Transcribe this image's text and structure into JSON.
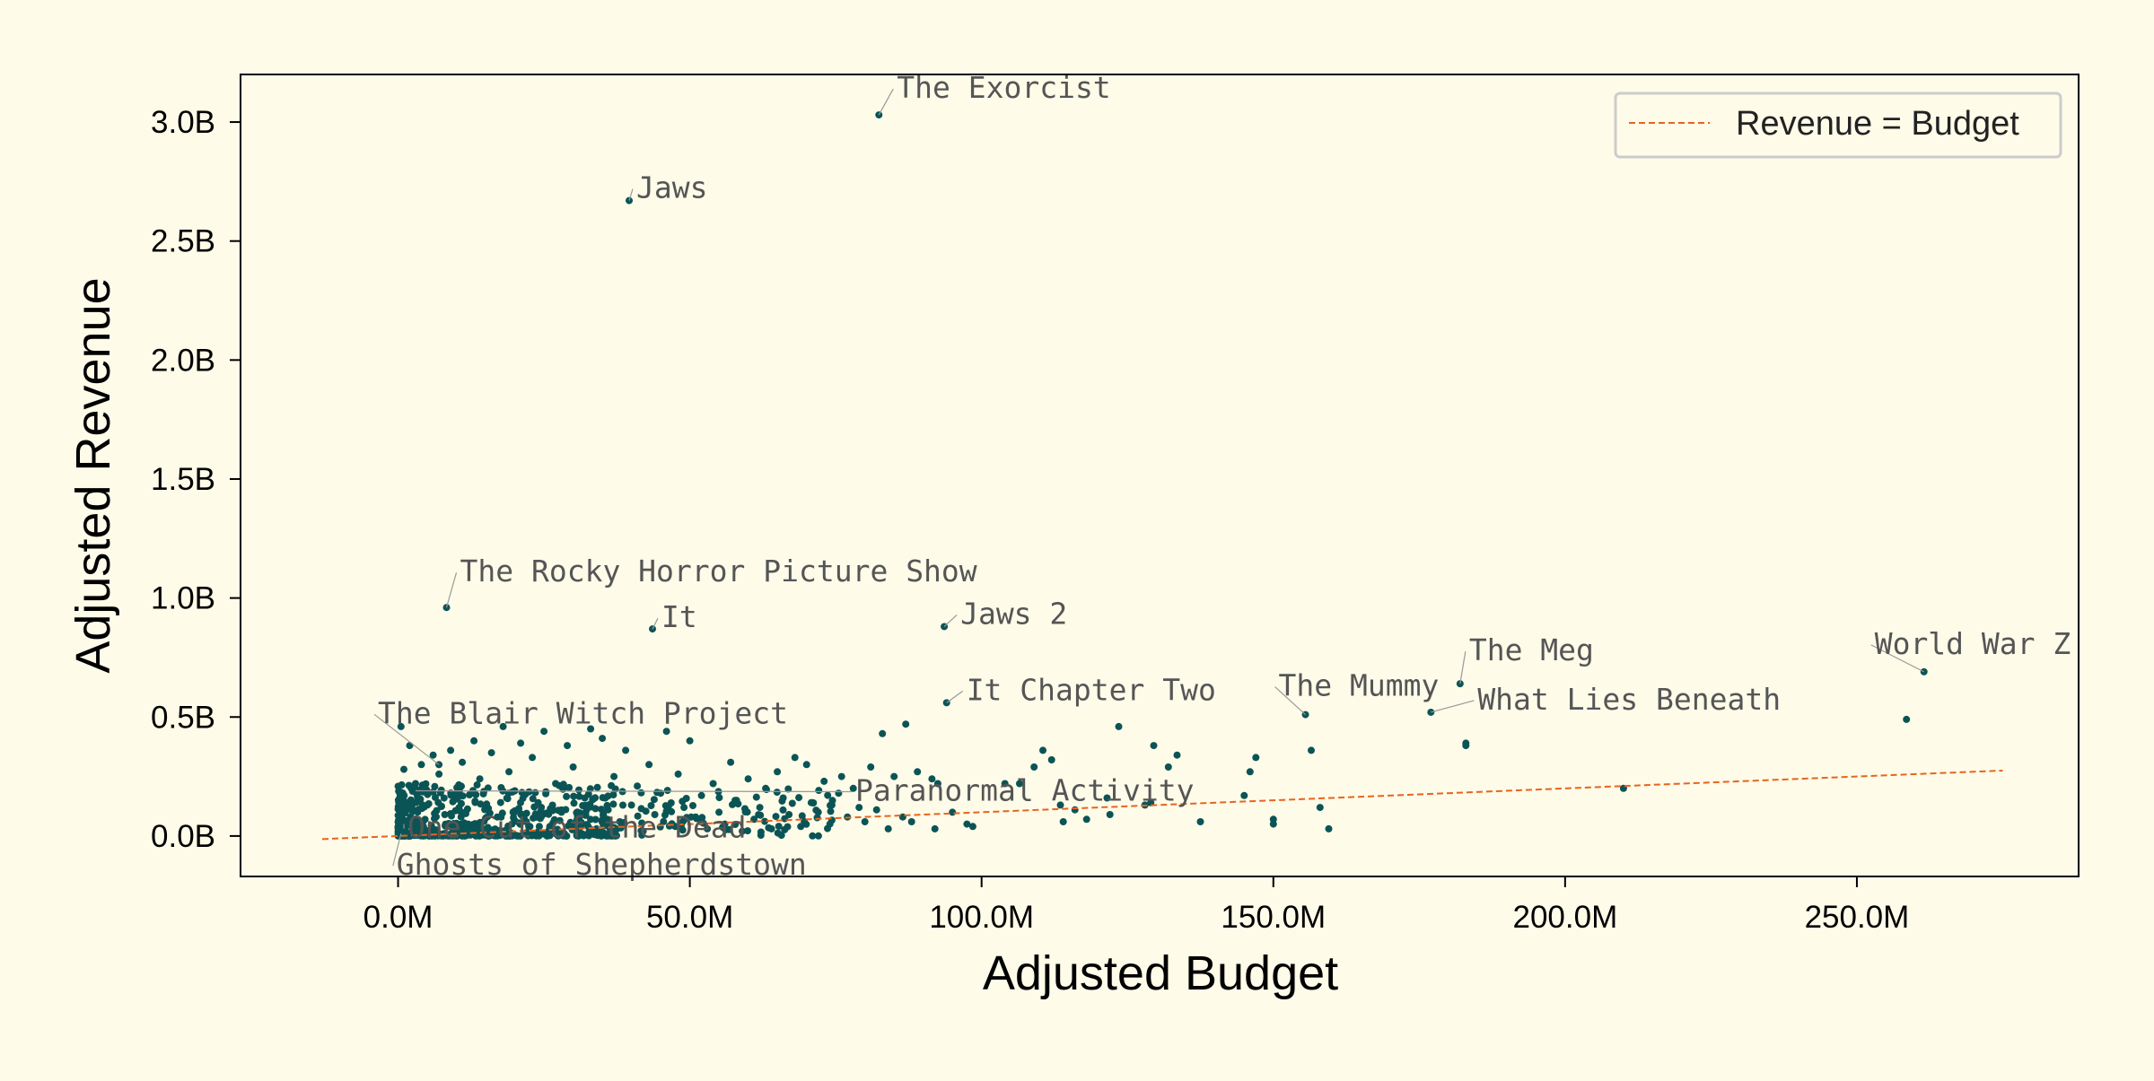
{
  "chart_data": {
    "type": "scatter",
    "xlabel": "Adjusted Budget",
    "ylabel": "Adjusted Revenue",
    "xlim": [
      -27,
      288
    ],
    "ylim": [
      -0.17,
      3.2
    ],
    "x_unit": "M",
    "y_unit": "B",
    "xticks": [
      0,
      50,
      100,
      150,
      200,
      250
    ],
    "xtick_labels": [
      "0.0M",
      "50.0M",
      "100.0M",
      "150.0M",
      "200.0M",
      "250.0M"
    ],
    "yticks": [
      0,
      0.5,
      1.0,
      1.5,
      2.0,
      2.5,
      3.0
    ],
    "ytick_labels": [
      "0.0B",
      "0.5B",
      "1.0B",
      "1.5B",
      "2.0B",
      "2.5B",
      "3.0B"
    ],
    "grid": false,
    "legend_position": "top-right",
    "reference_line": {
      "name": "Revenue = Budget",
      "x": [
        -13,
        275
      ],
      "y": [
        -0.013,
        0.275
      ],
      "color": "#e8641e"
    },
    "point_color": "#0b5456",
    "labeled_points": [
      {
        "label": "The Exorcist",
        "x": 82.4,
        "y": 3.03
      },
      {
        "label": "Jaws",
        "x": 39.6,
        "y": 2.67
      },
      {
        "label": "The Rocky Horror Picture Show",
        "x": 8.3,
        "y": 0.96
      },
      {
        "label": "It",
        "x": 43.6,
        "y": 0.87
      },
      {
        "label": "Jaws 2",
        "x": 93.6,
        "y": 0.88
      },
      {
        "label": "It Chapter Two",
        "x": 94.0,
        "y": 0.56
      },
      {
        "label": "The Mummy",
        "x": 155.5,
        "y": 0.51
      },
      {
        "label": "The Meg",
        "x": 182.0,
        "y": 0.64
      },
      {
        "label": "What Lies Beneath",
        "x": 177.0,
        "y": 0.52
      },
      {
        "label": "World War Z",
        "x": 261.5,
        "y": 0.69
      },
      {
        "label": "The Blair Witch Project",
        "x": 7.0,
        "y": 0.3
      },
      {
        "label": "Paranormal Activity",
        "x": 3.0,
        "y": 0.19
      },
      {
        "label": "One Cut of the Dead",
        "x": 1.0,
        "y": 0.05
      },
      {
        "label": "Ghosts of Shepherdstown",
        "x": 0.5,
        "y": 0.01
      }
    ],
    "other_points": [
      [
        258.5,
        0.49
      ],
      [
        210.0,
        0.2
      ],
      [
        183.0,
        0.38
      ],
      [
        183.0,
        0.39
      ],
      [
        159.5,
        0.03
      ],
      [
        158.0,
        0.12
      ],
      [
        156.5,
        0.36
      ],
      [
        150.0,
        0.05
      ],
      [
        150.0,
        0.07
      ],
      [
        147.0,
        0.33
      ],
      [
        146.0,
        0.27
      ],
      [
        145.0,
        0.17
      ],
      [
        137.5,
        0.06
      ],
      [
        133.5,
        0.34
      ],
      [
        132.0,
        0.29
      ],
      [
        129.5,
        0.38
      ],
      [
        129.0,
        0.14
      ],
      [
        128.0,
        0.13
      ],
      [
        123.5,
        0.46
      ],
      [
        122.0,
        0.09
      ],
      [
        121.5,
        0.16
      ],
      [
        118.0,
        0.07
      ],
      [
        116.0,
        0.11
      ],
      [
        114.0,
        0.06
      ],
      [
        113.5,
        0.13
      ],
      [
        112.0,
        0.32
      ],
      [
        110.5,
        0.36
      ],
      [
        109.0,
        0.29
      ],
      [
        106.5,
        0.22
      ],
      [
        104.0,
        0.22
      ],
      [
        98.5,
        0.04
      ],
      [
        97.5,
        0.05
      ],
      [
        95.0,
        0.1
      ],
      [
        92.5,
        0.22
      ],
      [
        92.0,
        0.03
      ],
      [
        91.5,
        0.24
      ],
      [
        89.0,
        0.27
      ],
      [
        88.0,
        0.06
      ],
      [
        87.0,
        0.47
      ],
      [
        86.5,
        0.08
      ],
      [
        85.0,
        0.25
      ],
      [
        84.0,
        0.03
      ],
      [
        83.0,
        0.43
      ],
      [
        82.0,
        0.11
      ],
      [
        81.0,
        0.29
      ],
      [
        80.0,
        0.06
      ],
      [
        79.0,
        0.12
      ],
      [
        78.0,
        0.2
      ],
      [
        77.0,
        0.08
      ],
      [
        76.0,
        0.25
      ],
      [
        75.5,
        0.18
      ],
      [
        74.0,
        0.05
      ],
      [
        73.0,
        0.23
      ],
      [
        72.0,
        0.1
      ],
      [
        71.0,
        0.14
      ],
      [
        70.0,
        0.3
      ],
      [
        69.0,
        0.04
      ],
      [
        68.0,
        0.33
      ],
      [
        67.0,
        0.09
      ],
      [
        66.0,
        0.16
      ],
      [
        65.0,
        0.27
      ],
      [
        64.0,
        0.03
      ],
      [
        63.0,
        0.2
      ],
      [
        62.0,
        0.12
      ],
      [
        61.0,
        0.07
      ],
      [
        60.0,
        0.24
      ],
      [
        59.0,
        0.02
      ],
      [
        58.0,
        0.15
      ],
      [
        57.0,
        0.31
      ],
      [
        56.0,
        0.05
      ],
      [
        55.0,
        0.1
      ],
      [
        54.0,
        0.22
      ],
      [
        53.0,
        0.03
      ],
      [
        52.0,
        0.17
      ],
      [
        51.0,
        0.08
      ],
      [
        50.0,
        0.4
      ],
      [
        49.0,
        0.12
      ],
      [
        48.0,
        0.26
      ],
      [
        47.5,
        0.04
      ],
      [
        46.0,
        0.44
      ],
      [
        45.0,
        0.18
      ],
      [
        44.0,
        0.09
      ],
      [
        43.0,
        0.3
      ],
      [
        42.0,
        0.02
      ],
      [
        41.0,
        0.21
      ],
      [
        40.0,
        0.13
      ],
      [
        39.0,
        0.36
      ],
      [
        38.0,
        0.06
      ],
      [
        37.0,
        0.25
      ],
      [
        36.0,
        0.11
      ],
      [
        35.0,
        0.41
      ],
      [
        34.0,
        0.03
      ],
      [
        33.0,
        0.45
      ],
      [
        32.0,
        0.16
      ],
      [
        31.0,
        0.07
      ],
      [
        30.0,
        0.29
      ],
      [
        29.0,
        0.38
      ],
      [
        28.0,
        0.1
      ],
      [
        27.0,
        0.22
      ],
      [
        26.0,
        0.04
      ],
      [
        25.0,
        0.44
      ],
      [
        24.0,
        0.14
      ],
      [
        23.0,
        0.33
      ],
      [
        22.0,
        0.06
      ],
      [
        21.0,
        0.39
      ],
      [
        20.0,
        0.19
      ],
      [
        19.0,
        0.27
      ],
      [
        18.0,
        0.46
      ],
      [
        17.0,
        0.08
      ],
      [
        16.0,
        0.35
      ],
      [
        15.0,
        0.12
      ],
      [
        14.0,
        0.24
      ],
      [
        13.0,
        0.4
      ],
      [
        12.0,
        0.05
      ],
      [
        11.0,
        0.31
      ],
      [
        10.0,
        0.17
      ],
      [
        9.0,
        0.36
      ],
      [
        8.0,
        0.09
      ],
      [
        7.0,
        0.26
      ],
      [
        6.0,
        0.34
      ],
      [
        5.0,
        0.13
      ],
      [
        4.0,
        0.3
      ],
      [
        3.0,
        0.22
      ],
      [
        2.0,
        0.38
      ],
      [
        1.0,
        0.28
      ],
      [
        0.5,
        0.46
      ],
      [
        0.3,
        0.18
      ]
    ]
  },
  "legend": {
    "line_label": "Revenue = Budget"
  }
}
